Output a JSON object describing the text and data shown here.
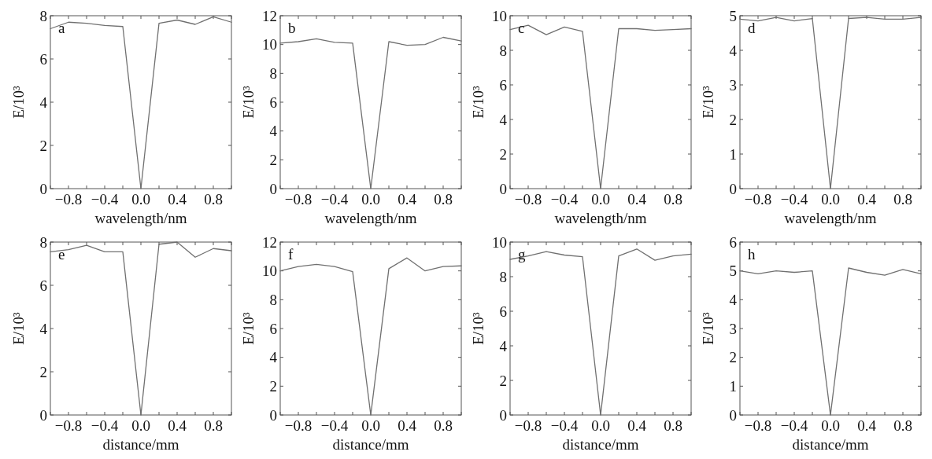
{
  "chart_data": [
    {
      "type": "line",
      "annotations": [
        "a"
      ],
      "xlabel": "wavelength/nm",
      "ylabel": "E/10³",
      "x": [
        -1,
        -0.8,
        -0.6,
        -0.4,
        -0.2,
        0,
        0.2,
        0.4,
        0.6,
        0.8,
        1
      ],
      "series": [
        {
          "color": "#707070",
          "values": [
            7.4,
            7.7,
            7.65,
            7.55,
            7.5,
            0,
            7.65,
            7.8,
            7.6,
            7.95,
            7.7
          ]
        }
      ],
      "xlim": [
        -1,
        1
      ],
      "ylim": [
        0,
        8
      ],
      "xticks": [
        {
          "value": -1,
          "label": null
        },
        {
          "value": -0.8,
          "label": "−0.8"
        },
        {
          "value": -0.6,
          "label": null
        },
        {
          "value": -0.4,
          "label": "−0.4"
        },
        {
          "value": -0.2,
          "label": null
        },
        {
          "value": 0,
          "label": "0.0"
        },
        {
          "value": 0.2,
          "label": null
        },
        {
          "value": 0.4,
          "label": "0.4"
        },
        {
          "value": 0.6,
          "label": null
        },
        {
          "value": 0.8,
          "label": "0.8"
        },
        {
          "value": 1,
          "label": null
        }
      ],
      "yticks": [
        0,
        2,
        4,
        6,
        8
      ]
    },
    {
      "type": "line",
      "annotations": [
        "b"
      ],
      "xlabel": "wavelength/nm",
      "ylabel": "E/10³",
      "x": [
        -1,
        -0.8,
        -0.6,
        -0.4,
        -0.2,
        0,
        0.2,
        0.4,
        0.6,
        0.8,
        1
      ],
      "series": [
        {
          "color": "#707070",
          "values": [
            10.1,
            10.2,
            10.4,
            10.15,
            10.1,
            0,
            10.2,
            9.95,
            10.0,
            10.5,
            10.25
          ]
        }
      ],
      "xlim": [
        -1,
        1
      ],
      "ylim": [
        0,
        12
      ],
      "xticks": [
        {
          "value": -1,
          "label": null
        },
        {
          "value": -0.8,
          "label": "−0.8"
        },
        {
          "value": -0.6,
          "label": null
        },
        {
          "value": -0.4,
          "label": "−0.4"
        },
        {
          "value": -0.2,
          "label": null
        },
        {
          "value": 0,
          "label": "0.0"
        },
        {
          "value": 0.2,
          "label": null
        },
        {
          "value": 0.4,
          "label": "0.4"
        },
        {
          "value": 0.6,
          "label": null
        },
        {
          "value": 0.8,
          "label": "0.8"
        },
        {
          "value": 1,
          "label": null
        }
      ],
      "yticks": [
        0,
        2,
        4,
        6,
        8,
        10,
        12
      ]
    },
    {
      "type": "line",
      "annotations": [
        "c"
      ],
      "xlabel": "wavelength/nm",
      "ylabel": "E/10³",
      "x": [
        -1,
        -0.8,
        -0.6,
        -0.4,
        -0.2,
        0,
        0.2,
        0.4,
        0.6,
        0.8,
        1
      ],
      "series": [
        {
          "color": "#707070",
          "values": [
            9.2,
            9.45,
            8.9,
            9.35,
            9.1,
            0,
            9.25,
            9.25,
            9.15,
            9.2,
            9.25
          ]
        }
      ],
      "xlim": [
        -1,
        1
      ],
      "ylim": [
        0,
        10
      ],
      "xticks": [
        {
          "value": -1,
          "label": null
        },
        {
          "value": -0.8,
          "label": "−0.8"
        },
        {
          "value": -0.6,
          "label": null
        },
        {
          "value": -0.4,
          "label": "−0.4"
        },
        {
          "value": -0.2,
          "label": null
        },
        {
          "value": 0,
          "label": "0.0"
        },
        {
          "value": 0.2,
          "label": null
        },
        {
          "value": 0.4,
          "label": "0.4"
        },
        {
          "value": 0.6,
          "label": null
        },
        {
          "value": 0.8,
          "label": "0.8"
        },
        {
          "value": 1,
          "label": null
        }
      ],
      "yticks": [
        0,
        2,
        4,
        6,
        8,
        10
      ]
    },
    {
      "type": "line",
      "annotations": [
        "d"
      ],
      "xlabel": "wavelength/nm",
      "ylabel": "E/10³",
      "x": [
        -1,
        -0.8,
        -0.6,
        -0.4,
        -0.2,
        0,
        0.2,
        0.4,
        0.6,
        0.8,
        1
      ],
      "series": [
        {
          "color": "#707070",
          "values": [
            4.9,
            4.85,
            4.95,
            4.85,
            4.92,
            0,
            4.92,
            4.95,
            4.9,
            4.9,
            4.95
          ]
        }
      ],
      "xlim": [
        -1,
        1
      ],
      "ylim": [
        0,
        5
      ],
      "xticks": [
        {
          "value": -1,
          "label": null
        },
        {
          "value": -0.8,
          "label": "−0.8"
        },
        {
          "value": -0.6,
          "label": null
        },
        {
          "value": -0.4,
          "label": "−0.4"
        },
        {
          "value": -0.2,
          "label": null
        },
        {
          "value": 0,
          "label": "0.0"
        },
        {
          "value": 0.2,
          "label": null
        },
        {
          "value": 0.4,
          "label": "0.4"
        },
        {
          "value": 0.6,
          "label": null
        },
        {
          "value": 0.8,
          "label": "0.8"
        },
        {
          "value": 1,
          "label": null
        }
      ],
      "yticks": [
        0,
        1,
        2,
        3,
        4,
        5
      ]
    },
    {
      "type": "line",
      "annotations": [
        "e"
      ],
      "xlabel": "distance/mm",
      "ylabel": "E/10³",
      "x": [
        -1,
        -0.8,
        -0.6,
        -0.4,
        -0.2,
        0,
        0.2,
        0.4,
        0.6,
        0.8,
        1
      ],
      "series": [
        {
          "color": "#707070",
          "values": [
            7.55,
            7.65,
            7.85,
            7.55,
            7.55,
            0,
            7.9,
            8.0,
            7.3,
            7.7,
            7.6
          ]
        }
      ],
      "xlim": [
        -1,
        1
      ],
      "ylim": [
        0,
        8
      ],
      "xticks": [
        {
          "value": -1,
          "label": null
        },
        {
          "value": -0.8,
          "label": "−0.8"
        },
        {
          "value": -0.6,
          "label": null
        },
        {
          "value": -0.4,
          "label": "−0.4"
        },
        {
          "value": -0.2,
          "label": null
        },
        {
          "value": 0,
          "label": "0.0"
        },
        {
          "value": 0.2,
          "label": null
        },
        {
          "value": 0.4,
          "label": "0.4"
        },
        {
          "value": 0.6,
          "label": null
        },
        {
          "value": 0.8,
          "label": "0.8"
        },
        {
          "value": 1,
          "label": null
        }
      ],
      "yticks": [
        0,
        2,
        4,
        6,
        8
      ]
    },
    {
      "type": "line",
      "annotations": [
        "f"
      ],
      "xlabel": "distance/mm",
      "ylabel": "E/10³",
      "x": [
        -1,
        -0.8,
        -0.6,
        -0.4,
        -0.2,
        0,
        0.2,
        0.4,
        0.6,
        0.8,
        1
      ],
      "series": [
        {
          "color": "#707070",
          "values": [
            10.0,
            10.3,
            10.45,
            10.3,
            9.95,
            0,
            10.15,
            10.9,
            10.0,
            10.3,
            10.35
          ]
        }
      ],
      "xlim": [
        -1,
        1
      ],
      "ylim": [
        0,
        12
      ],
      "xticks": [
        {
          "value": -1,
          "label": null
        },
        {
          "value": -0.8,
          "label": "−0.8"
        },
        {
          "value": -0.6,
          "label": null
        },
        {
          "value": -0.4,
          "label": "−0.4"
        },
        {
          "value": -0.2,
          "label": null
        },
        {
          "value": 0,
          "label": "0.0"
        },
        {
          "value": 0.2,
          "label": null
        },
        {
          "value": 0.4,
          "label": "0.4"
        },
        {
          "value": 0.6,
          "label": null
        },
        {
          "value": 0.8,
          "label": "0.8"
        },
        {
          "value": 1,
          "label": null
        }
      ],
      "yticks": [
        0,
        2,
        4,
        6,
        8,
        10,
        12
      ]
    },
    {
      "type": "line",
      "annotations": [
        "g"
      ],
      "xlabel": "distance/mm",
      "ylabel": "E/10³",
      "x": [
        -1,
        -0.8,
        -0.6,
        -0.4,
        -0.2,
        0,
        0.2,
        0.4,
        0.6,
        0.8,
        1
      ],
      "series": [
        {
          "color": "#707070",
          "values": [
            9.0,
            9.2,
            9.45,
            9.25,
            9.15,
            0,
            9.2,
            9.6,
            8.95,
            9.2,
            9.3
          ]
        }
      ],
      "xlim": [
        -1,
        1
      ],
      "ylim": [
        0,
        10
      ],
      "xticks": [
        {
          "value": -1,
          "label": null
        },
        {
          "value": -0.8,
          "label": "−0.8"
        },
        {
          "value": -0.6,
          "label": null
        },
        {
          "value": -0.4,
          "label": "−0.4"
        },
        {
          "value": -0.2,
          "label": null
        },
        {
          "value": 0,
          "label": "0.0"
        },
        {
          "value": 0.2,
          "label": null
        },
        {
          "value": 0.4,
          "label": "0.4"
        },
        {
          "value": 0.6,
          "label": null
        },
        {
          "value": 0.8,
          "label": "0.8"
        },
        {
          "value": 1,
          "label": null
        }
      ],
      "yticks": [
        0,
        2,
        4,
        6,
        8,
        10
      ]
    },
    {
      "type": "line",
      "annotations": [
        "h"
      ],
      "xlabel": "distance/mm",
      "ylabel": "E/10³",
      "x": [
        -1,
        -0.8,
        -0.6,
        -0.4,
        -0.2,
        0,
        0.2,
        0.4,
        0.6,
        0.8,
        1
      ],
      "series": [
        {
          "color": "#707070",
          "values": [
            5.0,
            4.9,
            5.0,
            4.95,
            5.0,
            0,
            5.1,
            4.95,
            4.85,
            5.05,
            4.9
          ]
        }
      ],
      "xlim": [
        -1,
        1
      ],
      "ylim": [
        0,
        6
      ],
      "xticks": [
        {
          "value": -1,
          "label": null
        },
        {
          "value": -0.8,
          "label": "−0.8"
        },
        {
          "value": -0.6,
          "label": null
        },
        {
          "value": -0.4,
          "label": "−0.4"
        },
        {
          "value": -0.2,
          "label": null
        },
        {
          "value": 0,
          "label": "0.0"
        },
        {
          "value": 0.2,
          "label": null
        },
        {
          "value": 0.4,
          "label": "0.4"
        },
        {
          "value": 0.6,
          "label": null
        },
        {
          "value": 0.8,
          "label": "0.8"
        },
        {
          "value": 1,
          "label": null
        }
      ],
      "yticks": [
        0,
        1,
        2,
        3,
        4,
        5,
        6
      ]
    }
  ]
}
